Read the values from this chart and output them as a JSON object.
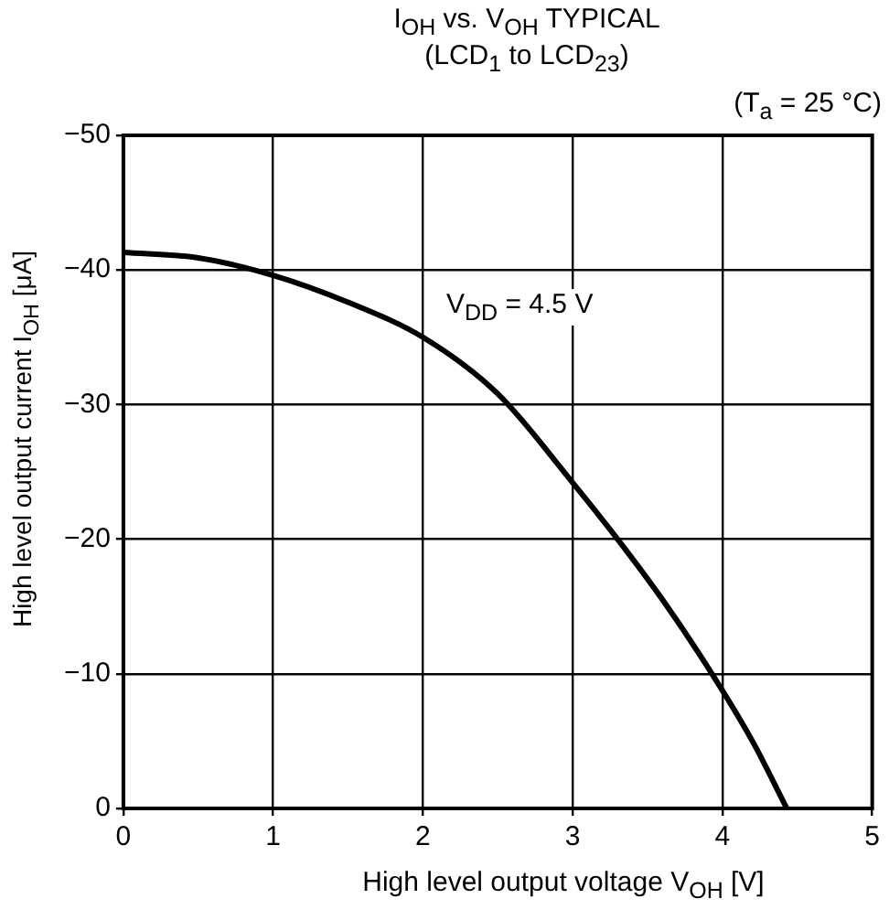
{
  "chart_data": {
    "type": "line",
    "title": "I$_{OH}$ vs. V$_{OH}$ TYPICAL",
    "subtitle": "(LCD$_{1}$ to LCD$_{23}$)",
    "xlabel": "High level output voltage V$_{OH}$ [V]",
    "ylabel": "High level output current I$_{OH}$ [μA]",
    "annotations": [
      "(T$_{a}$ = 25 °C)",
      "V$_{DD}$ = 4.5 V"
    ],
    "series": [
      {
        "color": "#000000",
        "x": [
          0,
          0.5,
          1,
          1.5,
          2,
          2.5,
          3,
          3.3,
          3.6,
          3.93,
          4.2,
          4.43
        ],
        "values": [
          -41.3,
          -40.9,
          -39.6,
          -37.6,
          -35,
          -30.8,
          -24.2,
          -20,
          -15.5,
          -10,
          -5,
          0
        ]
      }
    ],
    "xlim": [
      0,
      5
    ],
    "xticks": [
      0,
      1,
      2,
      3,
      4,
      5
    ],
    "ylim": [
      0,
      -50
    ],
    "yticks": [
      0,
      -10,
      -20,
      -30,
      -40,
      -50
    ],
    "grid": true,
    "marker": "none",
    "line_style": "solid"
  }
}
